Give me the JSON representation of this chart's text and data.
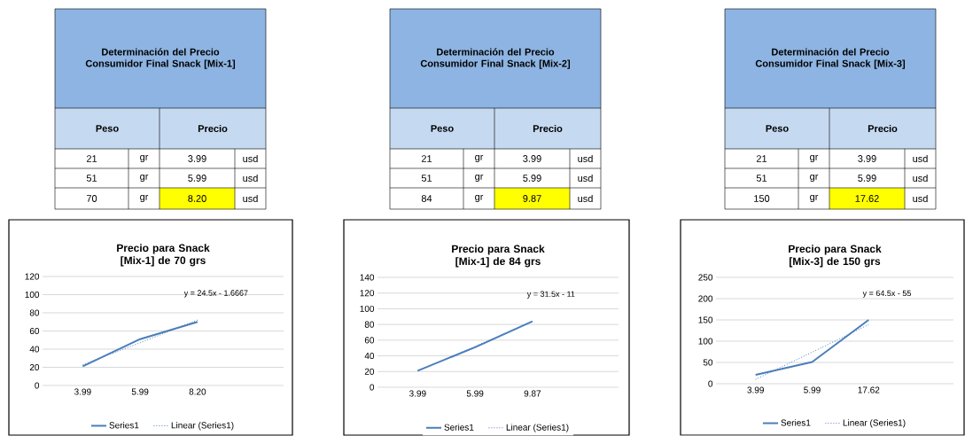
{
  "chart_data": [
    {
      "type": "other",
      "title": "Determinación del Precio Consumidor Final Snack [Mix-1]",
      "categories": [
        "Peso",
        "Precio"
      ],
      "annotations": [
        "21",
        "gr",
        "3.99",
        "usd",
        "51",
        "gr",
        "5.99",
        "usd",
        "70",
        "gr",
        "8.20",
        "usd"
      ]
    },
    {
      "type": "other",
      "title": "Determinación del Precio Consumidor Final Snack [Mix-2]",
      "categories": [
        "Peso",
        "Precio"
      ],
      "annotations": [
        "21",
        "gr",
        "3.99",
        "usd",
        "51",
        "gr",
        "5.99",
        "usd",
        "84",
        "gr",
        "9.87",
        "usd"
      ]
    },
    {
      "type": "other",
      "title": "Determinación del Precio Consumidor Final Snack [Mix-3]",
      "categories": [
        "Peso",
        "Precio"
      ],
      "annotations": [
        "21",
        "gr",
        "3.99",
        "usd",
        "51",
        "gr",
        "5.99",
        "usd",
        "150",
        "gr",
        "17.62",
        "usd"
      ]
    },
    {
      "type": "line",
      "title": "Precio para Snack [Mix-1] de 70 grs",
      "categories": [
        "3.99",
        "5.99",
        "8.20"
      ],
      "ylim": [
        0,
        120
      ],
      "yticks": [
        0,
        20,
        40,
        60,
        80,
        100,
        120
      ],
      "grid": "y",
      "legend": "bottom",
      "annotations": [
        "y = 24.5x - 1.6667"
      ],
      "series": [
        {
          "name": "Series1",
          "color": "#4a7ebb",
          "line_style": "solid",
          "values": [
            21,
            51,
            70
          ]
        },
        {
          "name": "Linear (Series1)",
          "color": "#4a7ebb",
          "line_style": "dotted",
          "values": [
            23,
            47,
            72
          ]
        }
      ]
    },
    {
      "type": "line",
      "title": "Precio para Snack [Mix-1] de 84 grs",
      "categories": [
        "3.99",
        "5.99",
        "9.87"
      ],
      "ylim": [
        0,
        140
      ],
      "yticks": [
        0,
        20,
        40,
        60,
        80,
        100,
        120,
        140
      ],
      "grid": "y",
      "legend": "bottom",
      "annotations": [
        "y = 31.5x - 11"
      ],
      "series": [
        {
          "name": "Series1",
          "color": "#4a7ebb",
          "line_style": "solid",
          "values": [
            21,
            51,
            84
          ]
        },
        {
          "name": "Linear (Series1)",
          "color": "#4a7ebb",
          "line_style": "dotted",
          "values": [
            21,
            52,
            84
          ]
        }
      ]
    },
    {
      "type": "line",
      "title": "Precio para Snack [Mix-3] de 150 grs",
      "categories": [
        "3.99",
        "5.99",
        "17.62"
      ],
      "ylim": [
        0,
        250
      ],
      "yticks": [
        0,
        50,
        100,
        150,
        200,
        250
      ],
      "grid": "y",
      "legend": "bottom",
      "annotations": [
        "y = 64.5x - 55"
      ],
      "series": [
        {
          "name": "Series1",
          "color": "#4a7ebb",
          "line_style": "solid",
          "values": [
            21,
            51,
            150
          ]
        },
        {
          "name": "Linear (Series1)",
          "color": "#4a7ebb",
          "line_style": "dotted",
          "values": [
            10,
            74,
            139
          ]
        }
      ]
    }
  ]
}
